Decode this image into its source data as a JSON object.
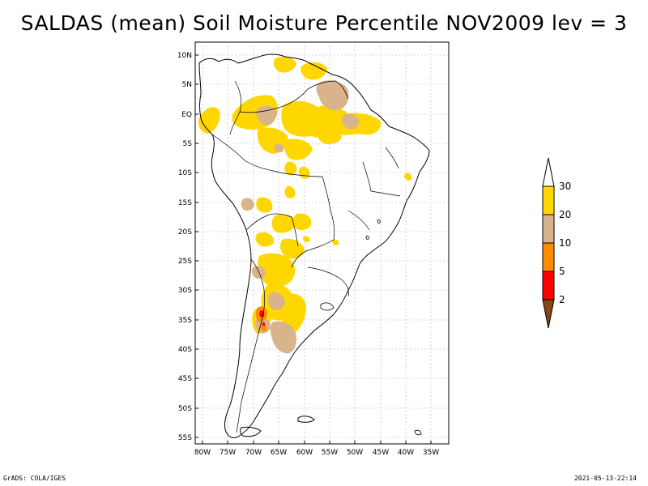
{
  "title": "SALDAS (mean) Soil Moisture Percentile NOV2009 lev = 3",
  "axes": {
    "lat_labels": [
      "10N",
      "5N",
      "EQ",
      "5S",
      "10S",
      "15S",
      "20S",
      "25S",
      "30S",
      "35S",
      "40S",
      "45S",
      "50S",
      "55S"
    ],
    "lon_labels": [
      "80W",
      "75W",
      "70W",
      "65W",
      "60W",
      "55W",
      "50W",
      "45W",
      "40W",
      "35W"
    ]
  },
  "legend": {
    "labels": [
      "30",
      "20",
      "10",
      "5",
      "2"
    ],
    "colors": {
      "top_arrow": "#ffffff",
      "c20_30": "#ffd700",
      "c10_20": "#d9b48a",
      "c5_10": "#ff8c00",
      "c2_5": "#ff0000",
      "below_2": "#8b4513"
    }
  },
  "footer": {
    "left": "GrADS: COLA/IGES",
    "right": "2021-05-13-22:14"
  }
}
